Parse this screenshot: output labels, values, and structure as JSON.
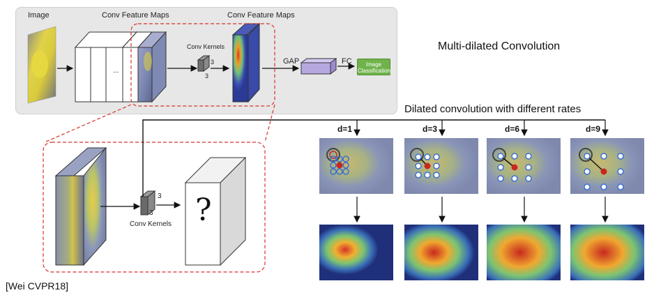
{
  "top_labels": {
    "image": "Image",
    "conv_maps_1": "Conv Feature Maps",
    "conv_maps_2": "Conv Feature Maps",
    "conv_kernels_top": "Conv Kernels",
    "kernel_size": "3",
    "ellipsis": "...",
    "gap": "GAP",
    "fc": "FC",
    "image_classification": "Image Classification"
  },
  "zoom_labels": {
    "conv_kernels": "Conv Kernels",
    "kernel_size": "3",
    "question": "?"
  },
  "title": "Multi-dilated Convolution",
  "subtitle": "Dilated convolution with different rates",
  "rates": [
    "d=1",
    "d=3",
    "d=6",
    "d=9"
  ],
  "citation": "[Wei CVPR18]",
  "colors": {
    "dash_red": "#d6332b",
    "panel_gray": "#e7e7e7",
    "gap_purple": "#b8a8e0",
    "fc_green": "#6fb34a"
  }
}
